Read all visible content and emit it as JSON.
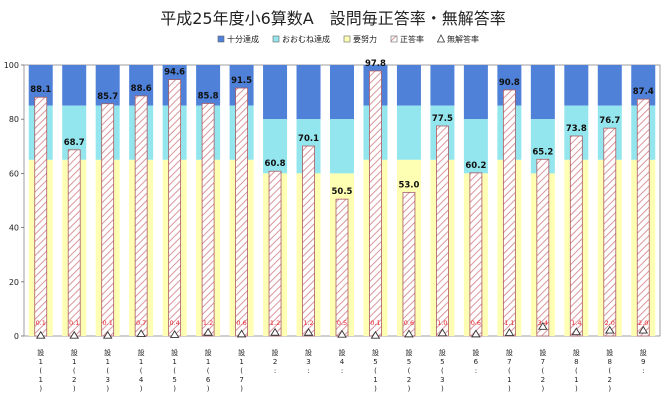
{
  "chart_data": {
    "type": "bar",
    "title": "平成25年度小6算数A　設問毎正答率・無解答率",
    "legend": [
      "十分達成",
      "おおむね達成",
      "要努力",
      "正答率",
      "無解答率"
    ],
    "legend_position": "top-right",
    "ylim": [
      0,
      100
    ],
    "yticks": [
      0,
      20,
      40,
      60,
      80,
      100
    ],
    "xlabel": "",
    "ylabel": "",
    "categories": [
      "1(1)",
      "1(2)",
      "1(3)",
      "1(4)",
      "1(5)",
      "1(6)",
      "1(7)",
      "2",
      "3",
      "4",
      "5(1)",
      "5(2)",
      "5(3)",
      "6",
      "7(1)",
      "7(2)",
      "8(1)",
      "8(2)",
      "9"
    ],
    "category_labels": [
      [
        "設",
        "1",
        "(",
        "1",
        ")"
      ],
      [
        "設",
        "1",
        "(",
        "2",
        ")"
      ],
      [
        "設",
        "1",
        "(",
        "3",
        ")"
      ],
      [
        "設",
        "1",
        "(",
        "4",
        ")"
      ],
      [
        "設",
        "1",
        "(",
        "5",
        ")"
      ],
      [
        "設",
        "1",
        "(",
        "6",
        ")"
      ],
      [
        "設",
        "1",
        "(",
        "7",
        ")"
      ],
      [
        "設",
        "2",
        ":"
      ],
      [
        "設",
        "3",
        ":"
      ],
      [
        "設",
        "4",
        ":"
      ],
      [
        "設",
        "5",
        "(",
        "1",
        ")"
      ],
      [
        "設",
        "5",
        "(",
        "2",
        ")"
      ],
      [
        "設",
        "5",
        "(",
        "3",
        ")"
      ],
      [
        "設",
        "6",
        ":"
      ],
      [
        "設",
        "7",
        "(",
        "1",
        ")"
      ],
      [
        "設",
        "7",
        "(",
        "2",
        ")"
      ],
      [
        "設",
        "8",
        "(",
        "1",
        ")"
      ],
      [
        "設",
        "8",
        "(",
        "2",
        ")"
      ],
      [
        "設",
        "9",
        ":"
      ]
    ],
    "thresholds": {
      "youdoryoku_upper": [
        65,
        65,
        65,
        65,
        65,
        65,
        65,
        60,
        60,
        60,
        65,
        65,
        65,
        60,
        65,
        60,
        65,
        65,
        65
      ],
      "oomune_upper": [
        85,
        85,
        85,
        85,
        85,
        85,
        85,
        80,
        80,
        80,
        85,
        85,
        85,
        80,
        85,
        80,
        85,
        85,
        85
      ]
    },
    "series": [
      {
        "name": "正答率",
        "values": [
          88.1,
          68.7,
          85.7,
          88.6,
          94.6,
          85.8,
          91.5,
          60.8,
          70.1,
          50.5,
          97.8,
          53.0,
          77.5,
          60.2,
          90.8,
          65.2,
          73.8,
          76.7,
          87.4
        ]
      },
      {
        "name": "無解答率",
        "values": [
          0.1,
          0.1,
          0.1,
          0.7,
          0.4,
          1.2,
          0.6,
          1.2,
          1.2,
          0.5,
          0.1,
          0.6,
          1.0,
          0.6,
          1.1,
          3.4,
          1.4,
          2.0,
          2.0
        ]
      }
    ],
    "value_labels": [
      "88.1",
      "68.7",
      "85.7",
      "88.6",
      "94.6",
      "85.8",
      "91.5",
      "60.8",
      "70.1",
      "50.5",
      "97.8",
      "53.0",
      "77.5",
      "60.2",
      "90.8",
      "65.2",
      "73.8",
      "76.7",
      "87.4"
    ],
    "noanswer_labels": [
      "0.1",
      "0.1",
      "0.1",
      "0.7",
      "0.4",
      "1.2",
      "0.6",
      "1.2",
      "1.2",
      "0.5",
      "0.1",
      "0.6",
      "1.0",
      "0.6",
      "1.1",
      "3.4",
      "1.4",
      "2.0",
      "2.0"
    ],
    "colors": {
      "juubun": "#4f81d9",
      "oomune": "#93e6ee",
      "youdoryoku": "#ffffb4",
      "seitou_stripe": "#d9969c",
      "seitou_border": "#a85c64",
      "noanswer_label": "#e8262d",
      "marker": "#333333"
    }
  }
}
